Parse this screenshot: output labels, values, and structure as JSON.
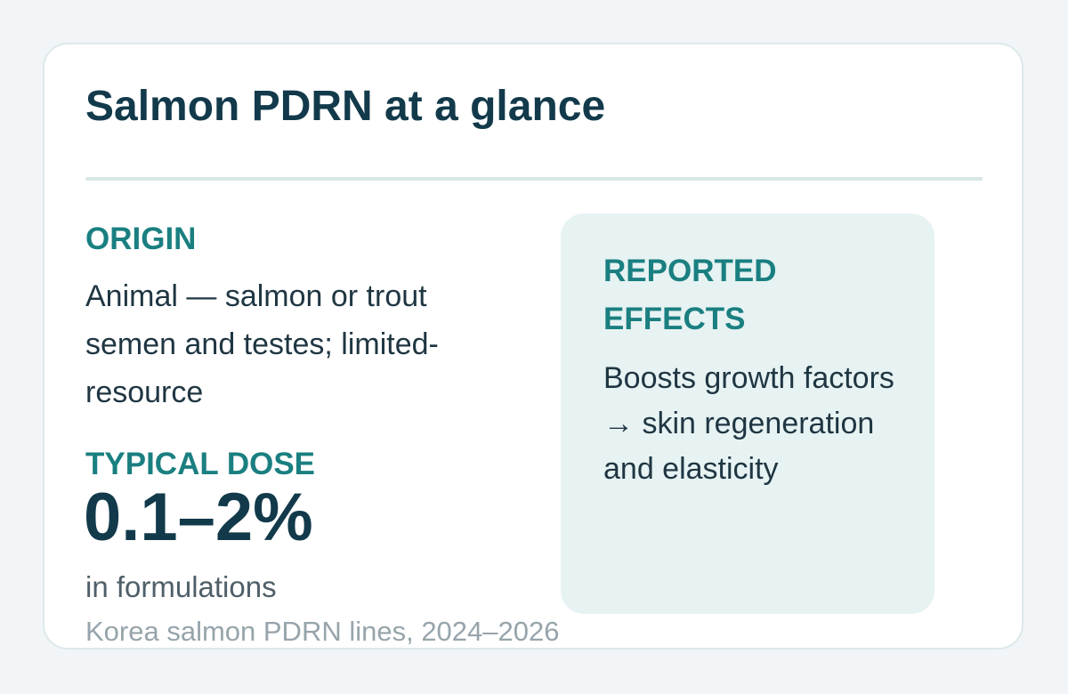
{
  "card": {
    "title": "Salmon PDRN at a glance",
    "origin": {
      "label": "ORIGIN",
      "text": "Animal — salmon or trout semen and testes; limited-resource"
    },
    "dose": {
      "label": "TYPICAL DOSE",
      "value": "0.1–2%",
      "unit": "in formulations"
    },
    "effects": {
      "label": "REPORTED EFFECTS",
      "text": "Boosts growth factors → skin regeneration and elasticity"
    },
    "source": "Korea salmon PDRN lines, 2024–2026"
  },
  "colors": {
    "page_background": "#f1f5f8",
    "card_background": "#ffffff",
    "title": "#123a4b",
    "accent": "#1a7f80",
    "panel_background": "#e7f2f3",
    "muted_text": "#97a4ab"
  }
}
